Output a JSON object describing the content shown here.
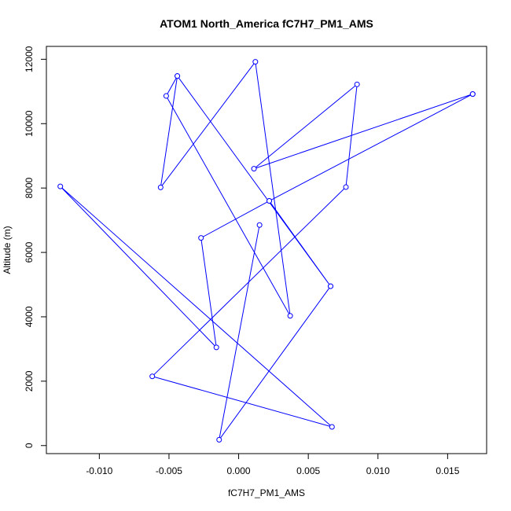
{
  "chart_data": {
    "type": "line",
    "title": "ATOM1 North_America fC7H7_PM1_AMS",
    "xlabel": "fC7H7_PM1_AMS",
    "ylabel": "Altitude (m)",
    "xlim": [
      -0.0138,
      0.0178
    ],
    "ylim": [
      -250,
      12400
    ],
    "x_ticks": [
      {
        "value": -0.01,
        "label": "-0.010"
      },
      {
        "value": -0.005,
        "label": "-0.005"
      },
      {
        "value": 0.0,
        "label": "0.000"
      },
      {
        "value": 0.005,
        "label": "0.005"
      },
      {
        "value": 0.01,
        "label": "0.010"
      },
      {
        "value": 0.015,
        "label": "0.015"
      }
    ],
    "y_ticks": [
      {
        "value": 0,
        "label": "0"
      },
      {
        "value": 2000,
        "label": "2000"
      },
      {
        "value": 4000,
        "label": "4000"
      },
      {
        "value": 6000,
        "label": "6000"
      },
      {
        "value": 8000,
        "label": "8000"
      },
      {
        "value": 10000,
        "label": "10000"
      },
      {
        "value": 12000,
        "label": "12000"
      }
    ],
    "grid": false,
    "series": [
      {
        "color": "#0000ff",
        "points": [
          {
            "x": 0.0015,
            "y": 6850
          },
          {
            "x": -0.0014,
            "y": 180
          },
          {
            "x": 0.0066,
            "y": 4950
          },
          {
            "x": -0.0044,
            "y": 11480
          },
          {
            "x": -0.0056,
            "y": 8020
          },
          {
            "x": 0.0012,
            "y": 11920
          },
          {
            "x": 0.0037,
            "y": 4030
          },
          {
            "x": -0.0052,
            "y": 10860
          },
          {
            "x": -0.0044,
            "y": 11480
          },
          {
            "x": 0.0066,
            "y": 4950
          },
          {
            "x": 0.0022,
            "y": 7600
          },
          {
            "x": 0.0168,
            "y": 10920
          },
          {
            "x": 0.0022,
            "y": 7600
          },
          {
            "x": -0.0027,
            "y": 6450
          },
          {
            "x": -0.0016,
            "y": 3050
          },
          {
            "x": -0.0128,
            "y": 8050
          },
          {
            "x": 0.0067,
            "y": 580
          },
          {
            "x": -0.0062,
            "y": 2150
          },
          {
            "x": 0.0077,
            "y": 8030
          },
          {
            "x": 0.0085,
            "y": 11220
          },
          {
            "x": 0.0011,
            "y": 8600
          },
          {
            "x": 0.0168,
            "y": 10920
          }
        ]
      }
    ]
  }
}
